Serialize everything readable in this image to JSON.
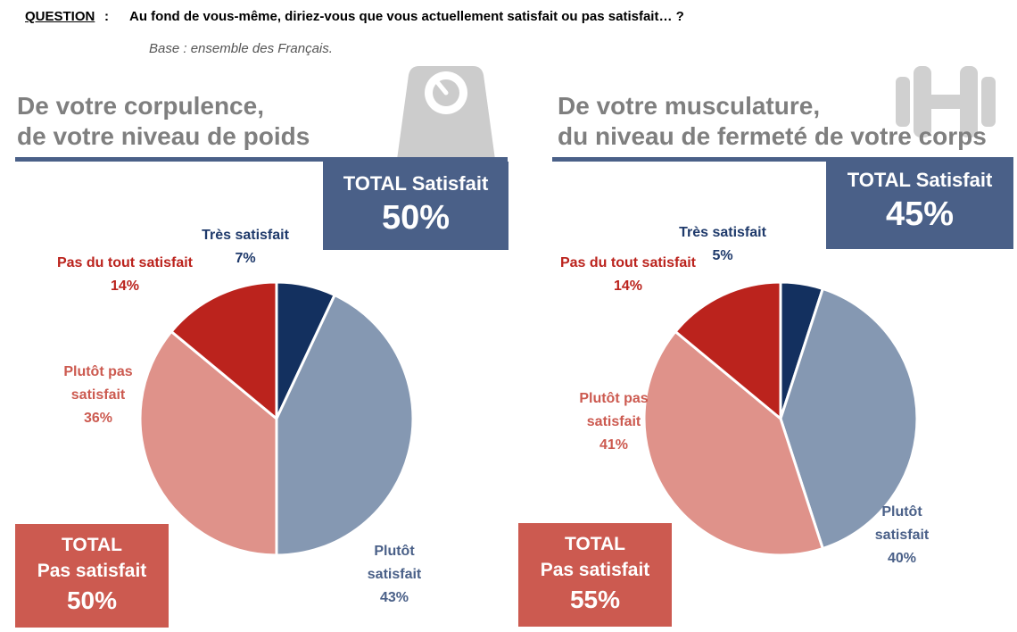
{
  "question": {
    "label": "QUESTION",
    "colon": ":",
    "text": "Au fond de vous-même, diriez-vous que vous actuellement satisfait ou pas satisfait… ?",
    "base": "Base : ensemble des Français."
  },
  "colors": {
    "tres_satisfait": "#13305f",
    "plutot_satisfait": "#8598b2",
    "plutot_pas": "#df928a",
    "pas_du_tout": "#bb231d",
    "total_sat_bg": "#4a6088",
    "total_pas_bg": "#cc5a50"
  },
  "panels": [
    {
      "title_line1": "De votre corpulence,",
      "title_line2": "de votre niveau de poids",
      "icon": "scale-icon",
      "total_satisfait": {
        "label": "TOTAL Satisfait",
        "value": "50%"
      },
      "total_pas_satisfait": {
        "line1": "TOTAL",
        "line2": "Pas satisfait",
        "value": "50%"
      }
    },
    {
      "title_line1": "De votre musculature,",
      "title_line2": "du niveau de fermeté de votre corps",
      "icon": "dumbbell-icon",
      "total_satisfait": {
        "label": "TOTAL Satisfait",
        "value": "45%"
      },
      "total_pas_satisfait": {
        "line1": "TOTAL",
        "line2": "Pas satisfait",
        "value": "55%"
      }
    }
  ],
  "chart_data": [
    {
      "type": "pie",
      "categories": [
        "Très satisfait",
        "Plutôt satisfait",
        "Plutôt pas satisfait",
        "Pas du tout satisfait"
      ],
      "values": [
        7,
        43,
        36,
        14
      ],
      "labels": [
        [
          "Très satisfait",
          "7%"
        ],
        [
          "Plutôt",
          "satisfait",
          "43%"
        ],
        [
          "Plutôt pas",
          "satisfait",
          "36%"
        ],
        [
          "Pas du tout satisfait",
          "14%"
        ]
      ]
    },
    {
      "type": "pie",
      "categories": [
        "Très satisfait",
        "Plutôt satisfait",
        "Plutôt pas satisfait",
        "Pas du tout satisfait"
      ],
      "values": [
        5,
        40,
        41,
        14
      ],
      "labels": [
        [
          "Très satisfait",
          "5%"
        ],
        [
          "Plutôt",
          "satisfait",
          "40%"
        ],
        [
          "Plutôt pas",
          "satisfait",
          "41%"
        ],
        [
          "Pas du tout satisfait",
          "14%"
        ]
      ]
    }
  ]
}
